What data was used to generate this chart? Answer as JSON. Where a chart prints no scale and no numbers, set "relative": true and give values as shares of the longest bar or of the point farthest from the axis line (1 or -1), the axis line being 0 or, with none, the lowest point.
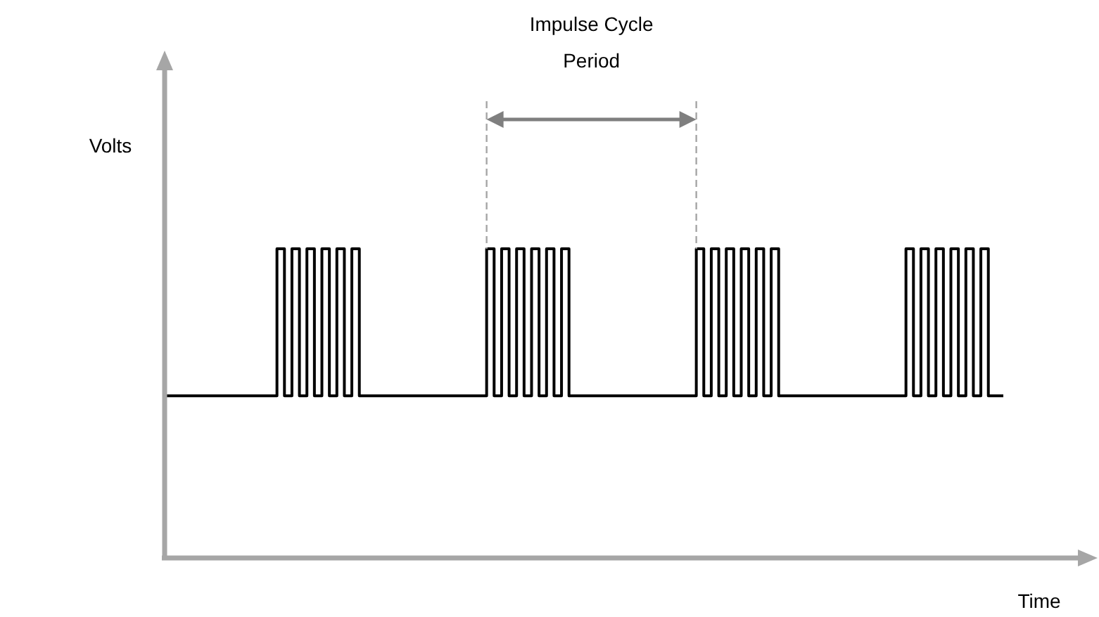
{
  "chart_data": {
    "type": "step",
    "relative": true,
    "xlabel": "Time",
    "ylabel": "Volts",
    "annotations": [
      "Impulse Cycle Period"
    ],
    "categories": [
      null,
      null,
      null,
      null,
      null,
      null,
      null,
      null,
      null,
      null,
      null,
      null,
      null,
      null,
      null,
      null,
      null,
      null,
      null,
      null,
      null,
      null,
      null,
      null,
      null,
      null,
      null,
      null,
      null,
      null,
      null,
      null,
      null,
      null,
      null,
      null,
      null,
      null,
      null,
      null,
      null,
      null,
      null,
      null,
      null,
      null,
      null,
      null,
      null,
      null,
      null,
      null,
      null,
      null,
      null,
      null,
      null,
      null,
      null,
      null,
      null,
      null,
      null,
      null,
      null,
      null,
      null,
      null,
      null,
      null,
      null,
      null,
      null,
      null,
      null,
      null,
      null,
      null,
      null,
      null,
      null,
      null,
      null,
      null,
      null,
      null,
      null,
      null,
      null,
      null,
      null,
      null,
      null,
      null,
      null,
      null,
      null,
      null,
      null,
      null,
      null,
      null,
      null,
      null,
      null,
      null,
      null,
      null,
      null,
      null,
      null,
      null,
      null
    ],
    "series": [
      {
        "color": "#000000",
        "values": [
          0.52,
          0.52,
          0.52,
          0.52,
          0.52,
          0.52,
          0.52,
          0.52,
          0.52,
          0.52,
          0.52,
          0.52,
          0.52,
          0.52,
          0.52,
          1,
          0.52,
          1,
          0.52,
          1,
          0.52,
          1,
          0.52,
          1,
          0.52,
          1,
          0.52,
          0.52,
          0.52,
          0.52,
          0.52,
          0.52,
          0.52,
          0.52,
          0.52,
          0.52,
          0.52,
          0.52,
          0.52,
          0.52,
          0.52,
          0.52,
          0.52,
          1,
          0.52,
          1,
          0.52,
          1,
          0.52,
          1,
          0.52,
          1,
          0.52,
          1,
          0.52,
          0.52,
          0.52,
          0.52,
          0.52,
          0.52,
          0.52,
          0.52,
          0.52,
          0.52,
          0.52,
          0.52,
          0.52,
          0.52,
          0.52,
          0.52,
          0.52,
          1,
          0.52,
          1,
          0.52,
          1,
          0.52,
          1,
          0.52,
          1,
          0.52,
          1,
          0.52,
          0.52,
          0.52,
          0.52,
          0.52,
          0.52,
          0.52,
          0.52,
          0.52,
          0.52,
          0.52,
          0.52,
          0.52,
          0.52,
          0.52,
          0.52,
          0.52,
          1,
          0.52,
          1,
          0.52,
          1,
          0.52,
          1,
          0.52,
          1,
          0.52,
          1,
          0.52,
          0.52,
          0.52
        ]
      }
    ]
  }
}
